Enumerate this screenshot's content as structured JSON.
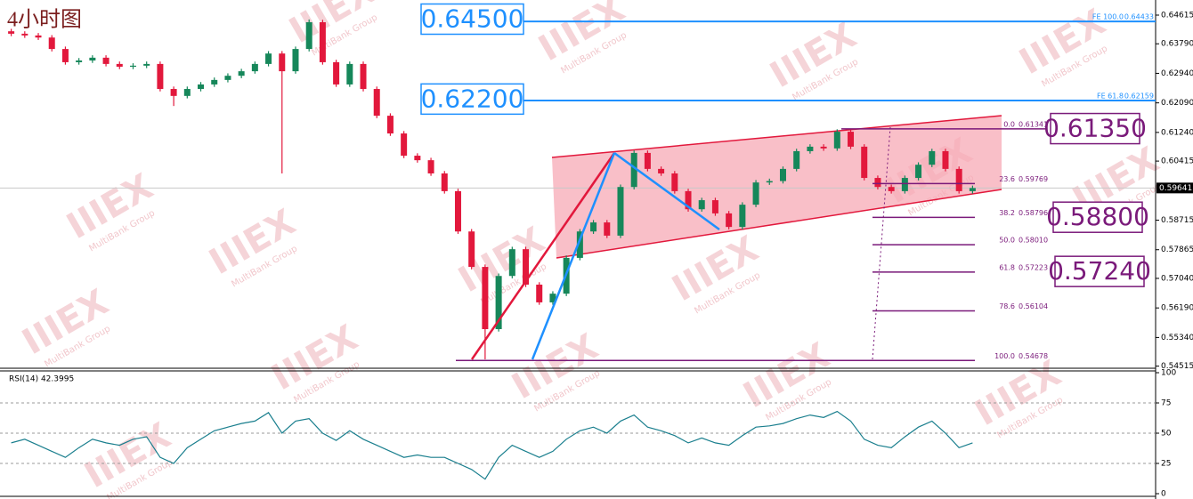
{
  "chart_data": [
    {
      "type": "candlestick",
      "title": "4小时图",
      "open": [
        0.6415,
        0.6408,
        0.6403,
        0.6397,
        0.6364,
        0.6326,
        0.6331,
        0.6339,
        0.6321,
        0.6313,
        0.6316,
        0.6321,
        0.6249,
        0.6229,
        0.6249,
        0.6262,
        0.6275,
        0.6287,
        0.63,
        0.6321,
        0.6351,
        0.63,
        0.6364,
        0.6441,
        0.6326,
        0.6262,
        0.6321,
        0.6249,
        0.6172,
        0.6121,
        0.6057,
        0.6044,
        0.6006,
        0.5955,
        0.5839,
        0.5737,
        0.5558,
        0.5711,
        0.5788,
        0.5686,
        0.5635,
        0.566,
        0.5763,
        0.5839,
        0.5865,
        0.5827,
        0.5967,
        0.6065,
        0.6019,
        0.6006,
        0.5955,
        0.5903,
        0.5929,
        0.5891,
        0.5852,
        0.5916,
        0.598,
        0.5984,
        0.6019,
        0.607,
        0.6083,
        0.6078,
        0.6126,
        0.6083,
        0.5993,
        0.5967,
        0.5955,
        0.5993,
        0.6031,
        0.607,
        0.6019,
        0.5955
      ],
      "high": [
        0.6422,
        0.6415,
        0.641,
        0.6404,
        0.6371,
        0.6338,
        0.6346,
        0.6346,
        0.6328,
        0.6323,
        0.6328,
        0.6328,
        0.6256,
        0.6256,
        0.6269,
        0.6282,
        0.6294,
        0.6307,
        0.6328,
        0.6358,
        0.6358,
        0.6371,
        0.6449,
        0.6448,
        0.6333,
        0.6328,
        0.6328,
        0.6256,
        0.6179,
        0.6128,
        0.6064,
        0.6051,
        0.6013,
        0.5962,
        0.5846,
        0.5744,
        0.5718,
        0.5795,
        0.5795,
        0.5693,
        0.5667,
        0.577,
        0.5846,
        0.5872,
        0.5872,
        0.5974,
        0.6072,
        0.6072,
        0.6026,
        0.6013,
        0.5962,
        0.5936,
        0.5936,
        0.5898,
        0.5923,
        0.5987,
        0.5991,
        0.6026,
        0.6077,
        0.609,
        0.609,
        0.6133,
        0.6133,
        0.609,
        0.6,
        0.5974,
        0.6,
        0.6038,
        0.6077,
        0.6077,
        0.6026,
        0.5971
      ],
      "low": [
        0.6401,
        0.6396,
        0.639,
        0.6357,
        0.6319,
        0.6319,
        0.6324,
        0.6314,
        0.6306,
        0.6306,
        0.6309,
        0.6242,
        0.62,
        0.6222,
        0.6242,
        0.6255,
        0.6268,
        0.628,
        0.6293,
        0.6314,
        0.6006,
        0.6293,
        0.6357,
        0.6319,
        0.6255,
        0.6255,
        0.6242,
        0.6165,
        0.6114,
        0.605,
        0.6037,
        0.5999,
        0.5948,
        0.5832,
        0.573,
        0.5471,
        0.5551,
        0.5704,
        0.5679,
        0.5628,
        0.5628,
        0.5653,
        0.5756,
        0.5832,
        0.582,
        0.582,
        0.596,
        0.6012,
        0.5999,
        0.5948,
        0.5896,
        0.5896,
        0.5884,
        0.5845,
        0.5845,
        0.5909,
        0.5973,
        0.5977,
        0.6012,
        0.6063,
        0.6071,
        0.6071,
        0.6076,
        0.5986,
        0.596,
        0.5948,
        0.5948,
        0.5986,
        0.6024,
        0.6012,
        0.5948,
        0.5948
      ],
      "close": [
        0.6408,
        0.6403,
        0.6397,
        0.6364,
        0.6326,
        0.6331,
        0.6339,
        0.6321,
        0.6313,
        0.6316,
        0.6321,
        0.6249,
        0.6229,
        0.6249,
        0.6262,
        0.6275,
        0.6287,
        0.63,
        0.6321,
        0.6351,
        0.63,
        0.6364,
        0.6441,
        0.6326,
        0.6262,
        0.6321,
        0.6249,
        0.6172,
        0.6121,
        0.6057,
        0.6044,
        0.6006,
        0.5955,
        0.5839,
        0.5737,
        0.5558,
        0.5711,
        0.5788,
        0.5686,
        0.5635,
        0.566,
        0.5763,
        0.5839,
        0.5865,
        0.5827,
        0.5967,
        0.6065,
        0.6019,
        0.6006,
        0.5955,
        0.5903,
        0.5929,
        0.5891,
        0.5852,
        0.5916,
        0.598,
        0.5984,
        0.6019,
        0.607,
        0.6083,
        0.6078,
        0.6126,
        0.6083,
        0.5993,
        0.5967,
        0.5955,
        0.5993,
        0.6031,
        0.607,
        0.6019,
        0.5955,
        0.5964
      ],
      "up_color": "#16875a",
      "down_color": "#e2183c",
      "ylim": [
        0.5448,
        0.6505
      ],
      "yticks": [
        0.64615,
        {
          "value": 0.6379,
          "label": "0.63790"
        },
        {
          "value": 0.6294,
          "label": "0.62940"
        },
        {
          "value": 0.6209,
          "label": "0.62090"
        },
        {
          "value": 0.6124,
          "label": "0.61240"
        },
        0.60415,
        0.58715,
        0.57865,
        {
          "value": 0.5704,
          "label": "0.57040"
        },
        {
          "value": 0.5619,
          "label": "0.56190"
        },
        {
          "value": 0.5534,
          "label": "0.55340"
        },
        0.54515
      ],
      "current_price": 0.59641,
      "expansions": [
        {
          "text": "FE 100.0",
          "price": 0.64433
        },
        {
          "text": "FE 61.8",
          "price": 0.62159
        }
      ],
      "expansion_color": "#1e90ff",
      "fibonacci": [
        {
          "ratio": "0.0",
          "price": 0.61341
        },
        {
          "ratio": "23.6",
          "price": 0.59769
        },
        {
          "ratio": "38.2",
          "price": 0.58796
        },
        {
          "ratio": "50.0",
          "price": {
            "value": 0.5801,
            "label": "0.58010"
          }
        },
        {
          "ratio": "61.8",
          "price": 0.57223
        },
        {
          "ratio": "78.6",
          "price": 0.56104
        },
        {
          "ratio": "100.0",
          "price": 0.54678
        }
      ],
      "fibonacci_color": "#7a1a7a",
      "targets": [
        {
          "value": 0.645,
          "label": "0.64500",
          "color": "#1e90ff"
        },
        {
          "value": 0.622,
          "label": "0.62200",
          "color": "#1e90ff"
        },
        {
          "value": 0.6135,
          "label": "0.61350",
          "color": "#7a1a7a"
        },
        {
          "value": 0.588,
          "label": "0.58800",
          "color": "#7a1a7a"
        },
        {
          "value": 0.5724,
          "label": "0.57240",
          "color": "#7a1a7a"
        }
      ],
      "watermark": [
        "IIIEX",
        "MultiBank Group"
      ]
    },
    {
      "type": "line",
      "title": "RSI(14) 42.3995",
      "values": [
        42,
        45,
        40,
        35,
        30,
        38,
        45,
        42,
        40,
        45,
        47,
        30,
        25,
        38,
        45,
        52,
        55,
        58,
        60,
        67,
        50,
        60,
        62,
        50,
        44,
        52,
        45,
        40,
        35,
        30,
        32,
        30,
        30,
        25,
        20,
        12,
        30,
        40,
        35,
        30,
        35,
        45,
        52,
        55,
        50,
        60,
        65,
        55,
        52,
        48,
        42,
        46,
        42,
        40,
        48,
        55,
        56,
        58,
        62,
        65,
        63,
        68,
        60,
        45,
        40,
        38,
        47,
        55,
        60,
        50,
        38,
        42
      ],
      "color": "#1a7f8e",
      "ylim": [
        0,
        100
      ],
      "yticks": [
        0,
        25,
        50,
        75,
        100
      ],
      "grid": true
    }
  ]
}
